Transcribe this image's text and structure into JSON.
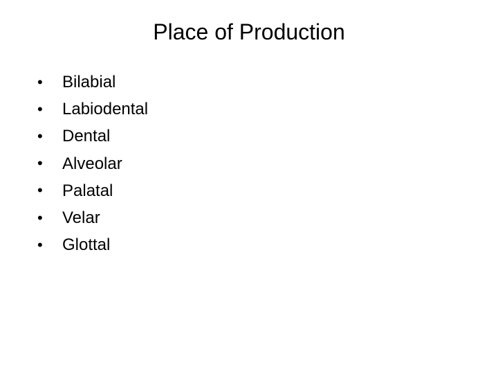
{
  "title": "Place of Production",
  "items": [
    "Bilabial",
    "Labiodental",
    "Dental",
    "Alveolar",
    "Palatal",
    "Velar",
    "Glottal"
  ],
  "colors": {
    "background": "#ffffff",
    "text": "#000000"
  },
  "typography": {
    "title_fontsize": 32,
    "item_fontsize": 24,
    "font_family": "Arial"
  }
}
